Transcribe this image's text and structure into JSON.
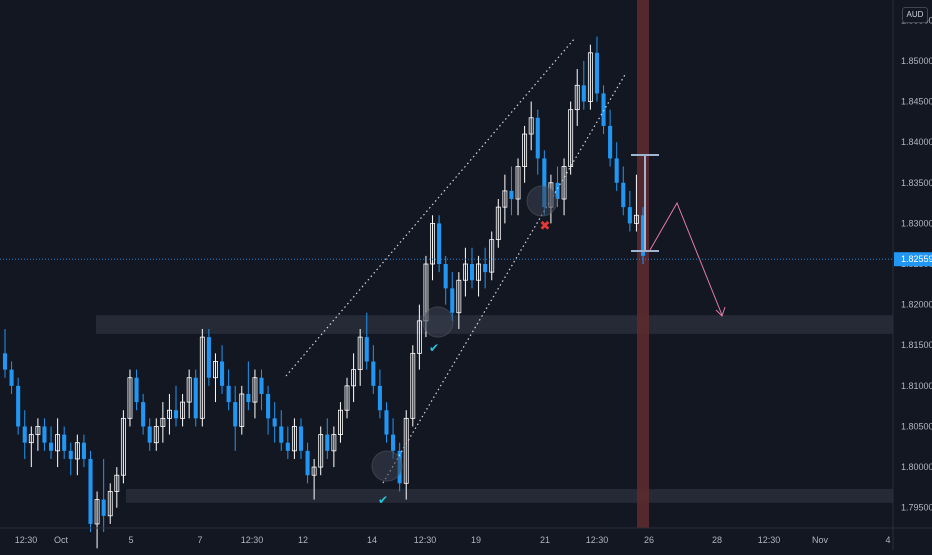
{
  "currency_badge": "AUD",
  "current_price_label": "1.82559",
  "chart_data": {
    "type": "candlestick",
    "title": "",
    "xlabel": "",
    "ylabel": "",
    "ylim": [
      1.7925,
      1.8575
    ],
    "y_ticks": [
      "1.79500",
      "1.80000",
      "1.80500",
      "1.81000",
      "1.81500",
      "1.82000",
      "1.82500",
      "1.83000",
      "1.83500",
      "1.84000",
      "1.84500",
      "1.85000",
      "1.85500"
    ],
    "y_tick_values": [
      1.795,
      1.8,
      1.805,
      1.81,
      1.815,
      1.82,
      1.825,
      1.83,
      1.835,
      1.84,
      1.845,
      1.85,
      1.855
    ],
    "x_ticks": [
      "12:30",
      "Oct",
      "5",
      "7",
      "12:30",
      "12",
      "14",
      "12:30",
      "19",
      "21",
      "12:30",
      "26",
      "28",
      "12:30",
      "Nov",
      "4"
    ],
    "current_price": 1.82559,
    "colors": {
      "up": "#ffffff",
      "down": "#2196f3",
      "background": "#131722",
      "zone": "#2a2e39",
      "highlight": "#5d2a2f",
      "arrow": "#e37ca6"
    },
    "zones": [
      {
        "from": 1.8164,
        "to": 1.8187
      },
      {
        "from": 1.7956,
        "to": 1.7973
      }
    ],
    "ohlc": [
      [
        1.814,
        1.817,
        1.811,
        1.812
      ],
      [
        1.812,
        1.813,
        1.809,
        1.81
      ],
      [
        1.81,
        1.811,
        1.804,
        1.805
      ],
      [
        1.805,
        1.807,
        1.801,
        1.803
      ],
      [
        1.803,
        1.805,
        1.8,
        1.804
      ],
      [
        1.804,
        1.806,
        1.802,
        1.805
      ],
      [
        1.805,
        1.806,
        1.802,
        1.803
      ],
      [
        1.803,
        1.805,
        1.801,
        1.802
      ],
      [
        1.802,
        1.806,
        1.8,
        1.804
      ],
      [
        1.804,
        1.805,
        1.801,
        1.802
      ],
      [
        1.802,
        1.803,
        1.799,
        1.801
      ],
      [
        1.801,
        1.804,
        1.799,
        1.803
      ],
      [
        1.803,
        1.804,
        1.8,
        1.801
      ],
      [
        1.801,
        1.802,
        1.792,
        1.793
      ],
      [
        1.793,
        1.797,
        1.79,
        1.796
      ],
      [
        1.796,
        1.801,
        1.792,
        1.794
      ],
      [
        1.794,
        1.798,
        1.793,
        1.797
      ],
      [
        1.797,
        1.8,
        1.795,
        1.799
      ],
      [
        1.799,
        1.807,
        1.798,
        1.806
      ],
      [
        1.806,
        1.812,
        1.805,
        1.811
      ],
      [
        1.811,
        1.812,
        1.807,
        1.808
      ],
      [
        1.808,
        1.809,
        1.804,
        1.805
      ],
      [
        1.805,
        1.806,
        1.802,
        1.803
      ],
      [
        1.803,
        1.806,
        1.802,
        1.805
      ],
      [
        1.805,
        1.808,
        1.803,
        1.806
      ],
      [
        1.806,
        1.809,
        1.804,
        1.807
      ],
      [
        1.807,
        1.81,
        1.805,
        1.806
      ],
      [
        1.806,
        1.809,
        1.805,
        1.808
      ],
      [
        1.808,
        1.812,
        1.806,
        1.811
      ],
      [
        1.811,
        1.812,
        1.805,
        1.806
      ],
      [
        1.806,
        1.817,
        1.805,
        1.816
      ],
      [
        1.816,
        1.817,
        1.81,
        1.811
      ],
      [
        1.811,
        1.814,
        1.808,
        1.813
      ],
      [
        1.813,
        1.815,
        1.809,
        1.81
      ],
      [
        1.81,
        1.812,
        1.807,
        1.808
      ],
      [
        1.808,
        1.81,
        1.802,
        1.805
      ],
      [
        1.805,
        1.81,
        1.804,
        1.809
      ],
      [
        1.809,
        1.813,
        1.807,
        1.808
      ],
      [
        1.808,
        1.812,
        1.806,
        1.811
      ],
      [
        1.811,
        1.812,
        1.807,
        1.809
      ],
      [
        1.809,
        1.81,
        1.804,
        1.806
      ],
      [
        1.806,
        1.808,
        1.803,
        1.805
      ],
      [
        1.805,
        1.807,
        1.802,
        1.803
      ],
      [
        1.803,
        1.805,
        1.801,
        1.802
      ],
      [
        1.802,
        1.806,
        1.801,
        1.805
      ],
      [
        1.805,
        1.806,
        1.801,
        1.802
      ],
      [
        1.802,
        1.803,
        1.798,
        1.799
      ],
      [
        1.799,
        1.801,
        1.796,
        1.8
      ],
      [
        1.8,
        1.805,
        1.799,
        1.804
      ],
      [
        1.804,
        1.806,
        1.801,
        1.802
      ],
      [
        1.802,
        1.805,
        1.8,
        1.804
      ],
      [
        1.804,
        1.808,
        1.803,
        1.807
      ],
      [
        1.807,
        1.811,
        1.806,
        1.81
      ],
      [
        1.81,
        1.814,
        1.808,
        1.812
      ],
      [
        1.812,
        1.817,
        1.81,
        1.816
      ],
      [
        1.816,
        1.819,
        1.812,
        1.813
      ],
      [
        1.813,
        1.815,
        1.809,
        1.81
      ],
      [
        1.81,
        1.812,
        1.806,
        1.807
      ],
      [
        1.807,
        1.808,
        1.803,
        1.804
      ],
      [
        1.804,
        1.806,
        1.801,
        1.802
      ],
      [
        1.802,
        1.803,
        1.797,
        1.798
      ],
      [
        1.798,
        1.807,
        1.796,
        1.806
      ],
      [
        1.806,
        1.815,
        1.805,
        1.814
      ],
      [
        1.814,
        1.82,
        1.812,
        1.818
      ],
      [
        1.818,
        1.826,
        1.816,
        1.825
      ],
      [
        1.825,
        1.831,
        1.823,
        1.83
      ],
      [
        1.83,
        1.831,
        1.824,
        1.825
      ],
      [
        1.825,
        1.826,
        1.82,
        1.822
      ],
      [
        1.822,
        1.824,
        1.818,
        1.819
      ],
      [
        1.819,
        1.824,
        1.817,
        1.823
      ],
      [
        1.823,
        1.827,
        1.821,
        1.825
      ],
      [
        1.825,
        1.827,
        1.822,
        1.823
      ],
      [
        1.823,
        1.826,
        1.821,
        1.825
      ],
      [
        1.825,
        1.827,
        1.822,
        1.824
      ],
      [
        1.824,
        1.829,
        1.823,
        1.828
      ],
      [
        1.828,
        1.833,
        1.827,
        1.832
      ],
      [
        1.832,
        1.836,
        1.83,
        1.834
      ],
      [
        1.834,
        1.837,
        1.831,
        1.833
      ],
      [
        1.833,
        1.838,
        1.831,
        1.837
      ],
      [
        1.837,
        1.842,
        1.835,
        1.841
      ],
      [
        1.841,
        1.845,
        1.839,
        1.843
      ],
      [
        1.843,
        1.844,
        1.836,
        1.838
      ],
      [
        1.838,
        1.839,
        1.831,
        1.832
      ],
      [
        1.832,
        1.836,
        1.83,
        1.835
      ],
      [
        1.835,
        1.837,
        1.832,
        1.833
      ],
      [
        1.833,
        1.838,
        1.831,
        1.837
      ],
      [
        1.837,
        1.845,
        1.836,
        1.844
      ],
      [
        1.844,
        1.849,
        1.842,
        1.847
      ],
      [
        1.847,
        1.85,
        1.844,
        1.845
      ],
      [
        1.845,
        1.852,
        1.844,
        1.851
      ],
      [
        1.851,
        1.853,
        1.845,
        1.846
      ],
      [
        1.846,
        1.847,
        1.841,
        1.842
      ],
      [
        1.842,
        1.844,
        1.837,
        1.838
      ],
      [
        1.838,
        1.84,
        1.834,
        1.835
      ],
      [
        1.835,
        1.837,
        1.831,
        1.832
      ],
      [
        1.832,
        1.834,
        1.829,
        1.83
      ],
      [
        1.83,
        1.836,
        1.829,
        1.831
      ],
      [
        1.831,
        1.832,
        1.825,
        1.826
      ]
    ],
    "annotations": [
      {
        "type": "label",
        "text": "✔"
      },
      {
        "type": "label",
        "text": "✔"
      },
      {
        "type": "label",
        "text": "✖"
      }
    ]
  }
}
